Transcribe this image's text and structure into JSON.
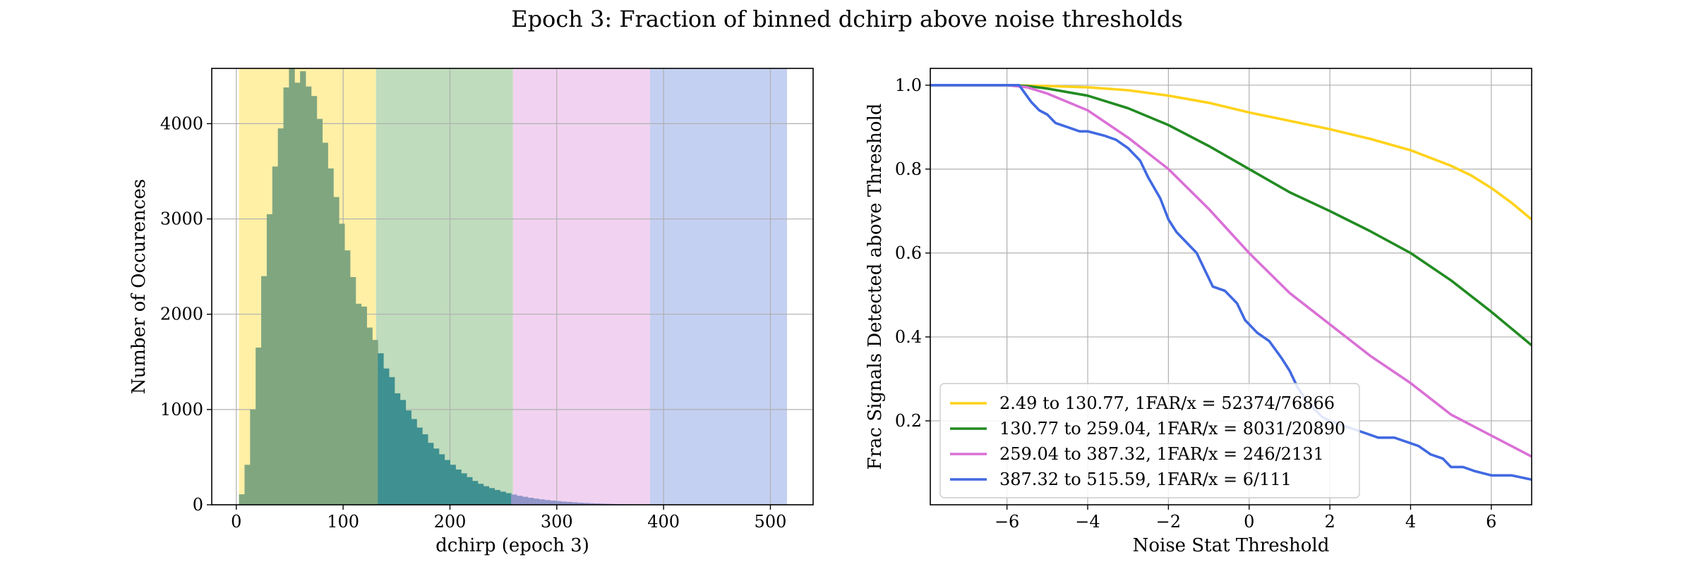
{
  "figure": {
    "title": "Epoch 3: Fraction of binned dchirp above noise thresholds"
  },
  "chart_data": [
    {
      "type": "bar",
      "subtype": "histogram",
      "xlabel": "dchirp (epoch 3)",
      "ylabel": "Number of Occurences",
      "xlim": [
        -23,
        540
      ],
      "ylim": [
        0,
        4580
      ],
      "xticks": [
        0,
        100,
        200,
        300,
        400,
        500
      ],
      "yticks": [
        0,
        1000,
        2000,
        3000,
        4000
      ],
      "grid": true,
      "bin_width": 5.2,
      "bands": [
        {
          "from": 2.49,
          "to": 130.77,
          "color": "#fff0a6"
        },
        {
          "from": 130.77,
          "to": 259.04,
          "color": "#bfdcbc"
        },
        {
          "from": 259.04,
          "to": 387.32,
          "color": "#f2d2f1"
        },
        {
          "from": 387.32,
          "to": 515.59,
          "color": "#c4d0f2"
        }
      ],
      "bin_colors": [
        {
          "until": 130.77,
          "color": "#80a680"
        },
        {
          "until": 259.04,
          "color": "#3f9090"
        },
        {
          "until": 387.32,
          "color": "#9196c9"
        },
        {
          "until": 515.59,
          "color": "#7788d6"
        }
      ],
      "bins_start": 2.49,
      "counts": [
        110,
        420,
        1000,
        1650,
        2400,
        3050,
        3550,
        3950,
        4380,
        4580,
        4430,
        4550,
        4390,
        4290,
        4050,
        3800,
        3530,
        3230,
        2950,
        2670,
        2390,
        2110,
        2080,
        1860,
        1730,
        1590,
        1430,
        1340,
        1170,
        1100,
        990,
        900,
        810,
        740,
        650,
        590,
        530,
        470,
        420,
        370,
        330,
        290,
        250,
        220,
        195,
        175,
        155,
        138,
        122,
        108,
        95,
        84,
        74,
        65,
        57,
        50,
        44,
        39,
        34,
        30,
        26,
        22,
        19,
        16,
        14,
        12,
        10,
        8,
        7,
        6,
        5,
        4,
        3,
        3,
        2,
        2,
        1,
        1,
        1,
        1,
        0,
        1,
        0,
        1,
        0,
        0,
        0,
        1,
        0,
        0,
        0,
        0,
        0,
        0,
        0,
        0,
        0,
        0,
        0
      ]
    },
    {
      "type": "line",
      "xlabel": "Noise Stat Threshold",
      "ylabel": "Frac Signals Detected above Threshold",
      "xlim": [
        -7.9,
        7.0
      ],
      "ylim": [
        0.0,
        1.04
      ],
      "xticks": [
        -6,
        -4,
        -2,
        0,
        2,
        4,
        6
      ],
      "yticks": [
        0.2,
        0.4,
        0.6,
        0.8,
        1.0
      ],
      "grid": true,
      "legend_position": "lower-left",
      "series": [
        {
          "name": "2.49 to 130.77, 1FAR/x = 52374/76866",
          "color": "#ffd21a",
          "x": [
            -7.9,
            -6,
            -5,
            -4,
            -3,
            -2,
            -1,
            0,
            1,
            2,
            3,
            4,
            5,
            5.5,
            6,
            6.5,
            7
          ],
          "y": [
            1.0,
            1.0,
            0.998,
            0.995,
            0.988,
            0.975,
            0.958,
            0.935,
            0.915,
            0.895,
            0.872,
            0.845,
            0.808,
            0.785,
            0.755,
            0.72,
            0.68
          ]
        },
        {
          "name": "130.77 to 259.04, 1FAR/x = 8031/20890",
          "color": "#228b22",
          "x": [
            -7.9,
            -6,
            -5.5,
            -5,
            -4,
            -3,
            -2,
            -1,
            0,
            1,
            2,
            3,
            4,
            5,
            6,
            6.5,
            7
          ],
          "y": [
            1.0,
            1.0,
            0.998,
            0.992,
            0.975,
            0.945,
            0.905,
            0.855,
            0.8,
            0.745,
            0.7,
            0.652,
            0.6,
            0.535,
            0.46,
            0.42,
            0.38
          ]
        },
        {
          "name": "259.04 to 387.32, 1FAR/x = 246/2131",
          "color": "#da70d6",
          "x": [
            -7.9,
            -6,
            -5.5,
            -5,
            -4,
            -3,
            -2,
            -1,
            0,
            1,
            2,
            3,
            4,
            5,
            6,
            6.5,
            7
          ],
          "y": [
            1.0,
            1.0,
            0.995,
            0.98,
            0.94,
            0.875,
            0.8,
            0.705,
            0.6,
            0.505,
            0.43,
            0.355,
            0.29,
            0.215,
            0.165,
            0.14,
            0.115
          ]
        },
        {
          "name": "387.32 to 515.59, 1FAR/x = 6/111",
          "color": "#4169e1",
          "x": [
            -7.9,
            -5.7,
            -5.55,
            -5.4,
            -5.2,
            -5,
            -4.8,
            -4.5,
            -4.2,
            -4,
            -3.6,
            -3.3,
            -3,
            -2.7,
            -2.5,
            -2.2,
            -2,
            -1.8,
            -1.5,
            -1.3,
            -1.1,
            -0.9,
            -0.6,
            -0.3,
            -0.1,
            0.2,
            0.5,
            0.8,
            1,
            1.2,
            1.4,
            1.6,
            1.8,
            2,
            2.3,
            2.6,
            2.9,
            3.2,
            3.6,
            3.9,
            4.2,
            4.5,
            4.8,
            5,
            5.3,
            5.6,
            6,
            6.5,
            7
          ],
          "y": [
            1.0,
            1.0,
            0.98,
            0.96,
            0.94,
            0.93,
            0.91,
            0.9,
            0.89,
            0.89,
            0.88,
            0.87,
            0.85,
            0.82,
            0.78,
            0.73,
            0.68,
            0.65,
            0.62,
            0.6,
            0.56,
            0.52,
            0.51,
            0.48,
            0.44,
            0.41,
            0.39,
            0.35,
            0.32,
            0.28,
            0.25,
            0.23,
            0.21,
            0.2,
            0.19,
            0.18,
            0.17,
            0.16,
            0.16,
            0.15,
            0.14,
            0.12,
            0.11,
            0.09,
            0.09,
            0.08,
            0.07,
            0.07,
            0.06
          ]
        }
      ]
    }
  ]
}
